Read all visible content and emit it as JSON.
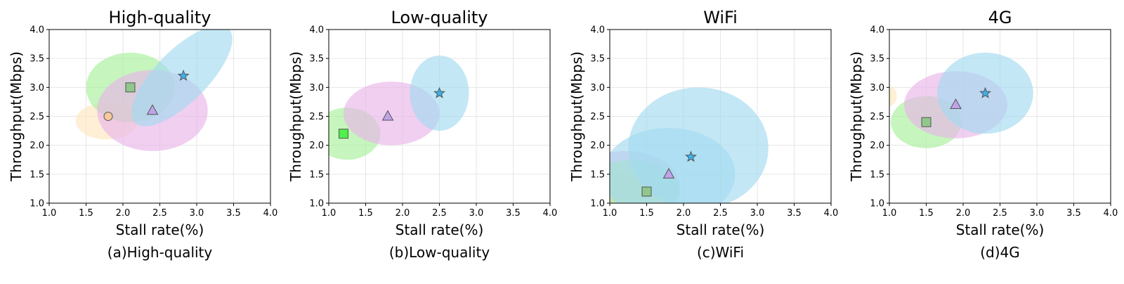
{
  "colors": {
    "orange": "#fde6c0",
    "green": "#a8f09b",
    "pink": "#e8b6ea",
    "blue": "#a3daf0",
    "marker_orange": "#f7c99d",
    "marker_green": "#4ef04a",
    "marker_green_muted": "#8fc88a",
    "marker_purple": "#bfa3e8",
    "marker_blue": "#3fb0e8"
  },
  "chart_data": [
    {
      "type": "scatter",
      "title": "High-quality",
      "caption": "(a)High-quality",
      "xlabel": "Stall rate(%)",
      "ylabel": "Throughput(Mbps)",
      "xlim": [
        1.0,
        4.0
      ],
      "ylim": [
        1.0,
        4.0
      ],
      "xticks": [
        "1.0",
        "1.5",
        "2.0",
        "2.5",
        "3.0",
        "3.5",
        "4.0"
      ],
      "yticks": [
        "1.0",
        "1.5",
        "2.0",
        "2.5",
        "3.0",
        "3.5",
        "4.0"
      ],
      "grid": true,
      "ellipses": [
        {
          "cx": 1.78,
          "cy": 2.42,
          "rx": 0.42,
          "ry": 0.32,
          "angle": 0,
          "color": "orange"
        },
        {
          "cx": 2.1,
          "cy": 3.0,
          "rx": 0.6,
          "ry": 0.6,
          "angle": 0,
          "color": "green"
        },
        {
          "cx": 2.4,
          "cy": 2.6,
          "rx": 0.75,
          "ry": 0.7,
          "angle": 0,
          "color": "pink"
        },
        {
          "cx": 2.8,
          "cy": 3.2,
          "rx": 0.9,
          "ry": 0.45,
          "angle": 45,
          "color": "blue"
        }
      ],
      "points": [
        {
          "x": 1.8,
          "y": 2.5,
          "marker": "circle",
          "color": "marker_orange"
        },
        {
          "x": 2.1,
          "y": 3.0,
          "marker": "square",
          "color": "marker_green_muted"
        },
        {
          "x": 2.4,
          "y": 2.6,
          "marker": "triangle",
          "color": "marker_purple"
        },
        {
          "x": 2.82,
          "y": 3.2,
          "marker": "star",
          "color": "marker_blue"
        }
      ]
    },
    {
      "type": "scatter",
      "title": "Low-quality",
      "caption": "(b)Low-quality",
      "xlabel": "Stall rate(%)",
      "ylabel": "Throughput(Mbps)",
      "xlim": [
        1.0,
        4.0
      ],
      "ylim": [
        1.0,
        4.0
      ],
      "xticks": [
        "1.0",
        "1.5",
        "2.0",
        "2.5",
        "3.0",
        "3.5",
        "4.0"
      ],
      "yticks": [
        "1.0",
        "1.5",
        "2.0",
        "2.5",
        "3.0",
        "3.5",
        "4.0"
      ],
      "grid": true,
      "ellipses": [
        {
          "cx": 1.25,
          "cy": 2.2,
          "rx": 0.45,
          "ry": 0.45,
          "angle": 0,
          "color": "green"
        },
        {
          "cx": 1.85,
          "cy": 2.55,
          "rx": 0.65,
          "ry": 0.55,
          "angle": 0,
          "color": "pink"
        },
        {
          "cx": 2.5,
          "cy": 2.9,
          "rx": 0.4,
          "ry": 0.65,
          "angle": 0,
          "color": "blue"
        }
      ],
      "points": [
        {
          "x": 1.2,
          "y": 2.2,
          "marker": "square",
          "color": "marker_green"
        },
        {
          "x": 1.8,
          "y": 2.5,
          "marker": "triangle",
          "color": "marker_purple"
        },
        {
          "x": 2.5,
          "y": 2.9,
          "marker": "star",
          "color": "marker_blue"
        }
      ]
    },
    {
      "type": "scatter",
      "title": "WiFi",
      "caption": "(c)WiFi",
      "xlabel": "Stall rate(%)",
      "ylabel": "Throughput(Mbps)",
      "xlim": [
        1.0,
        4.0
      ],
      "ylim": [
        1.0,
        4.0
      ],
      "xticks": [
        "1.0",
        "1.5",
        "2.0",
        "2.5",
        "3.0",
        "3.5",
        "4.0"
      ],
      "yticks": [
        "1.0",
        "1.5",
        "2.0",
        "2.5",
        "3.0",
        "3.5",
        "4.0"
      ],
      "grid": true,
      "ellipses": [
        {
          "cx": 1.0,
          "cy": 1.1,
          "rx": 0.5,
          "ry": 0.45,
          "angle": 0,
          "color": "orange"
        },
        {
          "cx": 1.2,
          "cy": 1.3,
          "rx": 0.75,
          "ry": 0.6,
          "angle": 0,
          "color": "pink"
        },
        {
          "cx": 1.3,
          "cy": 1.2,
          "rx": 0.65,
          "ry": 0.55,
          "angle": 0,
          "color": "green"
        },
        {
          "cx": 1.8,
          "cy": 1.5,
          "rx": 0.9,
          "ry": 0.8,
          "angle": 0,
          "color": "blue"
        },
        {
          "cx": 2.2,
          "cy": 1.95,
          "rx": 0.95,
          "ry": 1.05,
          "angle": 0,
          "color": "blue"
        }
      ],
      "points": [
        {
          "x": 1.5,
          "y": 1.2,
          "marker": "square",
          "color": "marker_green_muted"
        },
        {
          "x": 1.8,
          "y": 1.5,
          "marker": "triangle",
          "color": "marker_purple"
        },
        {
          "x": 2.1,
          "y": 1.8,
          "marker": "star",
          "color": "marker_blue"
        }
      ]
    },
    {
      "type": "scatter",
      "title": "4G",
      "caption": "(d)4G",
      "xlabel": "Stall rate(%)",
      "ylabel": "Throughput(Mbps)",
      "xlim": [
        1.0,
        4.0
      ],
      "ylim": [
        1.0,
        4.0
      ],
      "xticks": [
        "1.0",
        "1.5",
        "2.0",
        "2.5",
        "3.0",
        "3.5",
        "4.0"
      ],
      "yticks": [
        "1.0",
        "1.5",
        "2.0",
        "2.5",
        "3.0",
        "3.5",
        "4.0"
      ],
      "grid": true,
      "ellipses": [
        {
          "cx": 0.98,
          "cy": 2.85,
          "rx": 0.12,
          "ry": 0.18,
          "angle": 0,
          "color": "orange"
        },
        {
          "cx": 1.5,
          "cy": 2.4,
          "rx": 0.48,
          "ry": 0.45,
          "angle": 0,
          "color": "green"
        },
        {
          "cx": 1.9,
          "cy": 2.7,
          "rx": 0.7,
          "ry": 0.58,
          "angle": 0,
          "color": "pink"
        },
        {
          "cx": 2.3,
          "cy": 2.9,
          "rx": 0.65,
          "ry": 0.7,
          "angle": 0,
          "color": "blue"
        }
      ],
      "points": [
        {
          "x": 1.5,
          "y": 2.4,
          "marker": "square",
          "color": "marker_green_muted"
        },
        {
          "x": 1.9,
          "y": 2.7,
          "marker": "triangle",
          "color": "marker_purple"
        },
        {
          "x": 2.3,
          "y": 2.9,
          "marker": "star",
          "color": "marker_blue"
        }
      ]
    }
  ]
}
